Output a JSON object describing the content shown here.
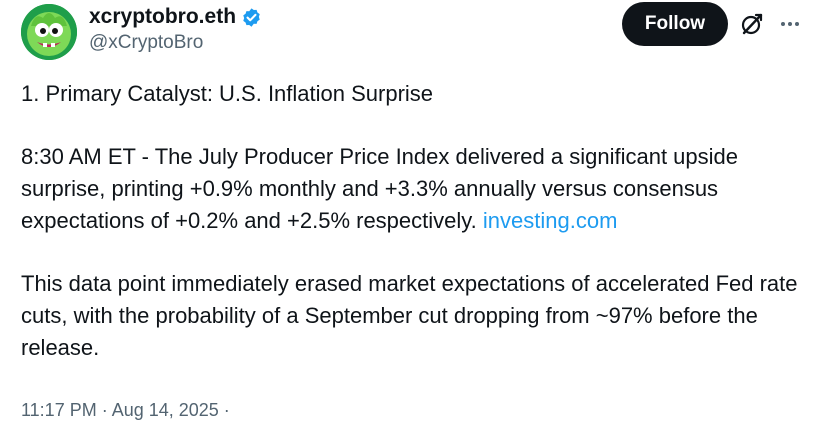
{
  "author": {
    "display_name": "xcryptobro.eth",
    "handle": "@xCryptoBro",
    "verified_icon": "verified-badge-icon",
    "avatar_icon": "green-monster-avatar"
  },
  "actions": {
    "follow_label": "Follow",
    "grok_icon": "grok-icon",
    "more_icon": "more-icon"
  },
  "tweet": {
    "heading": "1. Primary Catalyst: U.S. Inflation Surprise",
    "paragraph_2": "8:30 AM ET - The July Producer Price Index delivered a significant upside surprise, printing +0.9% monthly and +3.3% annually versus consensus expectations of +0.2% and +2.5% respectively.",
    "link_text": "investing.com",
    "paragraph_3": "This data point immediately erased market expectations of accelerated Fed rate cuts, with the probability of a September cut dropping from ~97% before the release."
  },
  "meta": {
    "timestamp": "11:17 PM · Aug 14, 2025 ·"
  },
  "colors": {
    "text": "#0f1419",
    "muted": "#536471",
    "link": "#1d9bf0",
    "verified": "#1d9bf0",
    "button_bg": "#0f1419"
  }
}
